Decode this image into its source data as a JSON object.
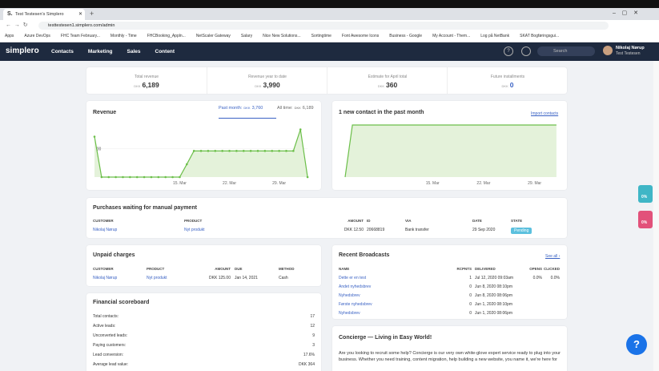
{
  "browser": {
    "tab_title": "Test Testesen's Simplero",
    "url": "testtestesen1.simplero.com/admin",
    "bookmarks": [
      "Apps",
      "Azure DevOps",
      "FHC Team February...",
      "Monthly - Time",
      "FHCBooking_Appln...",
      "NetScaler Gateway",
      "Salary",
      "Nice New Solutions...",
      "Sortingtime",
      "Font Awesome Icons",
      "Business - Google",
      "My Account - Them...",
      "Log på NetBank",
      "SKAT Bogføringsgui..."
    ]
  },
  "nav": {
    "logo": "simplero",
    "menu": [
      "Contacts",
      "Marketing",
      "Sales",
      "Content"
    ],
    "search": "Search",
    "user_name": "Nikolaj Nørup",
    "user_account": "Test Testesen"
  },
  "stats": [
    {
      "label": "Total revenue",
      "currency": "DKK",
      "value": "6,189"
    },
    {
      "label": "Revenue year to date",
      "currency": "DKK",
      "value": "3,990"
    },
    {
      "label": "Estimate for April total",
      "currency": "DKK",
      "value": "360"
    },
    {
      "label": "Future installments",
      "currency": "DKK",
      "value": "0"
    }
  ],
  "revenue": {
    "title": "Revenue",
    "tabs": [
      {
        "label": "Past month:",
        "currency": "DKK",
        "value": "3,760"
      },
      {
        "label": "All time:",
        "currency": "DKK",
        "value": "6,189"
      }
    ],
    "chart_data": {
      "type": "area",
      "markers": true,
      "color": "#6cbf4a",
      "fill": "#e4f2da",
      "categories": [
        null,
        null,
        null,
        null,
        null,
        null,
        null,
        null,
        null,
        null,
        null,
        null,
        "15. Mar",
        null,
        null,
        null,
        null,
        null,
        null,
        "22. Mar",
        null,
        null,
        null,
        null,
        null,
        null,
        "29. Mar",
        null,
        null,
        null,
        null
      ],
      "values": [
        283,
        0,
        0,
        0,
        0,
        0,
        0,
        0,
        0,
        0,
        0,
        0,
        0,
        90,
        183,
        183,
        183,
        183,
        183,
        183,
        183,
        183,
        183,
        183,
        183,
        183,
        183,
        183,
        183,
        333,
        0
      ],
      "ylim": [
        0,
        370
      ],
      "yticks": [
        200
      ]
    }
  },
  "contacts": {
    "title": "1 new contact in the past month",
    "link": "Import contacts",
    "chart_data": {
      "type": "area",
      "markers": false,
      "color": "#6cbf4a",
      "fill": "#e4f2da",
      "categories": [
        null,
        null,
        null,
        null,
        null,
        null,
        null,
        null,
        null,
        null,
        null,
        null,
        "15. Mar",
        null,
        null,
        null,
        null,
        null,
        null,
        "22. Mar",
        null,
        null,
        null,
        null,
        null,
        null,
        "29. Mar",
        null,
        null,
        null
      ],
      "values": [
        0,
        1,
        1,
        1,
        1,
        1,
        1,
        1,
        1,
        1,
        1,
        1,
        1,
        1,
        1,
        1,
        1,
        1,
        1,
        1,
        1,
        1,
        1,
        1,
        1,
        1,
        1,
        1,
        1,
        1
      ],
      "ylim": [
        0,
        1
      ],
      "yticks": []
    }
  },
  "purchases": {
    "title": "Purchases waiting for manual payment",
    "headers": [
      "CUSTOMER",
      "PRODUCT",
      "AMOUNT",
      "ID",
      "VIA",
      "DATE",
      "STATE"
    ],
    "rows": [
      [
        "Nikolaj Nørup",
        "Nyt produkt",
        "DKK 12.50",
        "20668819",
        "Bank transfer",
        "29 Sep 2020",
        "Pending"
      ]
    ]
  },
  "unpaid": {
    "title": "Unpaid charges",
    "headers": [
      "CUSTOMER",
      "PRODUCT",
      "AMOUNT",
      "DUE",
      "METHOD"
    ],
    "rows": [
      [
        "Nikolaj Nørup",
        "Nyt produkt",
        "DKK 125.00",
        "Jan 14, 2021",
        "Cash"
      ]
    ]
  },
  "broadcasts": {
    "title": "Recent Broadcasts",
    "link": "See all ›",
    "headers": [
      "NAME",
      "RCPNTS",
      "DELIVERED",
      "OPENS",
      "CLICKED"
    ],
    "rows": [
      [
        "Dette er en test",
        "1",
        "Jul 12, 2020 09:03am",
        "0.0%",
        "0.0%"
      ],
      [
        "Andet nyhedsbrev",
        "0",
        "Jun 8, 2020 08:10pm",
        "",
        ""
      ],
      [
        "Nyhedsbrev",
        "0",
        "Jun 8, 2020 08:06pm",
        "",
        ""
      ],
      [
        "Første nyhedsbrev",
        "0",
        "Jun 1, 2020 08:10pm",
        "",
        ""
      ],
      [
        "Nyhedsbrev",
        "0",
        "Jun 1, 2020 08:06pm",
        "",
        ""
      ]
    ]
  },
  "scoreboard": {
    "title": "Financial scoreboard",
    "items": [
      {
        "label": "Total contacts:",
        "value": "17"
      },
      {
        "label": "Active leads:",
        "value": "12"
      },
      {
        "label": "Unconverted leads:",
        "value": "9"
      },
      {
        "label": "Paying customers:",
        "value": "3"
      },
      {
        "label": "Lead conversion:",
        "value": "17.6%"
      },
      {
        "label": "Average lead value:",
        "value": "DKK 364"
      }
    ]
  },
  "concierge": {
    "title": "Concierge — Living in Easy World!",
    "text": "Are you looking to recruit some help? Concierge is our very own white-glove expert service ready to plug into your business. Whether you need training, content migration, help building a new website, you name it, we're here for"
  },
  "widgets": [
    "0%",
    "0%"
  ]
}
